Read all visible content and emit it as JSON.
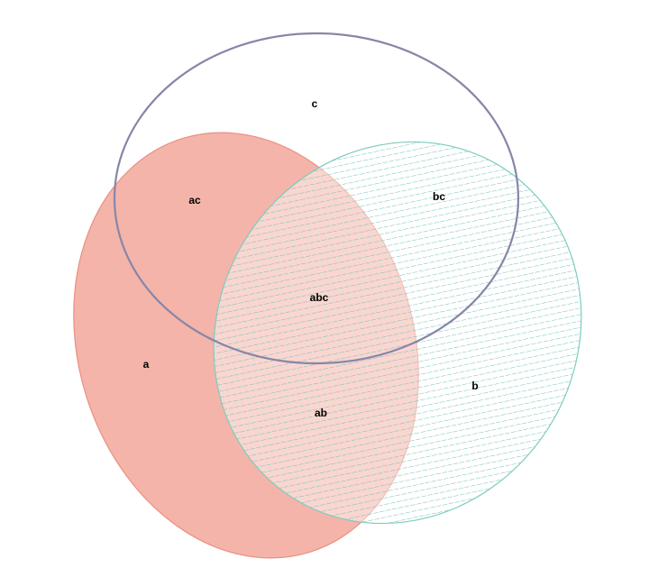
{
  "diagram": {
    "type": "venn-3",
    "sets": [
      {
        "id": "a",
        "fill": "#f4b4aa",
        "stroke": "#ea8f80",
        "style": "solid"
      },
      {
        "id": "b",
        "fill": "#ffffff",
        "stroke": "#7fcbbf",
        "hatch": "#6fc2b5",
        "style": "hatched"
      },
      {
        "id": "c",
        "fill": "none",
        "stroke": "#8886a8",
        "style": "outline"
      }
    ],
    "labels": {
      "a": "a",
      "b": "b",
      "c": "c",
      "ab": "ab",
      "ac": "ac",
      "bc": "bc",
      "abc": "abc"
    }
  }
}
